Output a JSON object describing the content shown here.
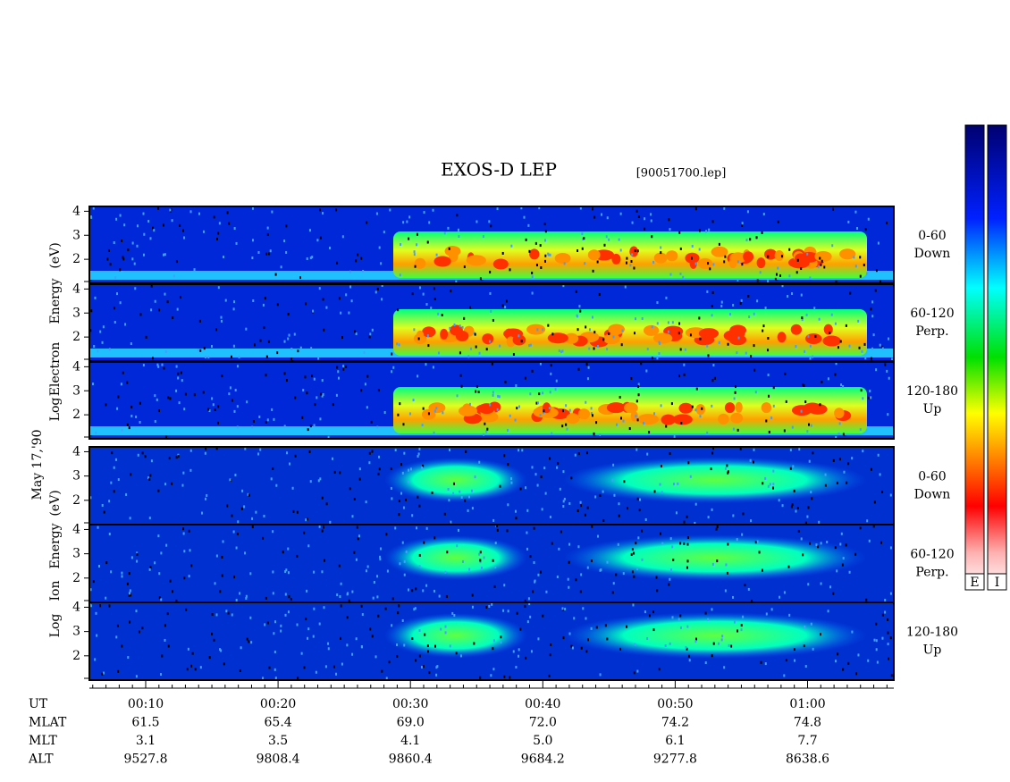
{
  "title": "EXOS-D LEP",
  "file": "[90051700.lep]",
  "date_label": "May 17,'90",
  "electron_ylabel": [
    "Log",
    "Electron",
    "Energy",
    "(eV)"
  ],
  "ion_ylabel": [
    "Log",
    "Ion",
    "Energy",
    "(eV)"
  ],
  "ylim": [
    1,
    4.2
  ],
  "yticks": [
    2,
    3,
    4
  ],
  "panels": [
    {
      "group": "electron",
      "pitch": "0-60",
      "dir": "Down"
    },
    {
      "group": "electron",
      "pitch": "60-120",
      "dir": "Perp."
    },
    {
      "group": "electron",
      "pitch": "120-180",
      "dir": "Up"
    },
    {
      "group": "ion",
      "pitch": "0-60",
      "dir": "Down"
    },
    {
      "group": "ion",
      "pitch": "60-120",
      "dir": "Perp."
    },
    {
      "group": "ion",
      "pitch": "120-180",
      "dir": "Up"
    }
  ],
  "x_rows": [
    {
      "label": "UT",
      "values": [
        "00:10",
        "00:20",
        "00:30",
        "00:40",
        "00:50",
        "01:00"
      ]
    },
    {
      "label": "MLAT",
      "values": [
        "61.5",
        "65.4",
        "69.0",
        "72.0",
        "74.2",
        "74.8"
      ]
    },
    {
      "label": "MLT",
      "values": [
        "3.1",
        "3.5",
        "4.1",
        "5.0",
        "6.1",
        "7.7"
      ]
    },
    {
      "label": "ALT",
      "values": [
        "9527.8",
        "9808.4",
        "9860.4",
        "9684.2",
        "9277.8",
        "8638.6"
      ]
    }
  ],
  "colorbars": [
    "E",
    "I"
  ]
}
